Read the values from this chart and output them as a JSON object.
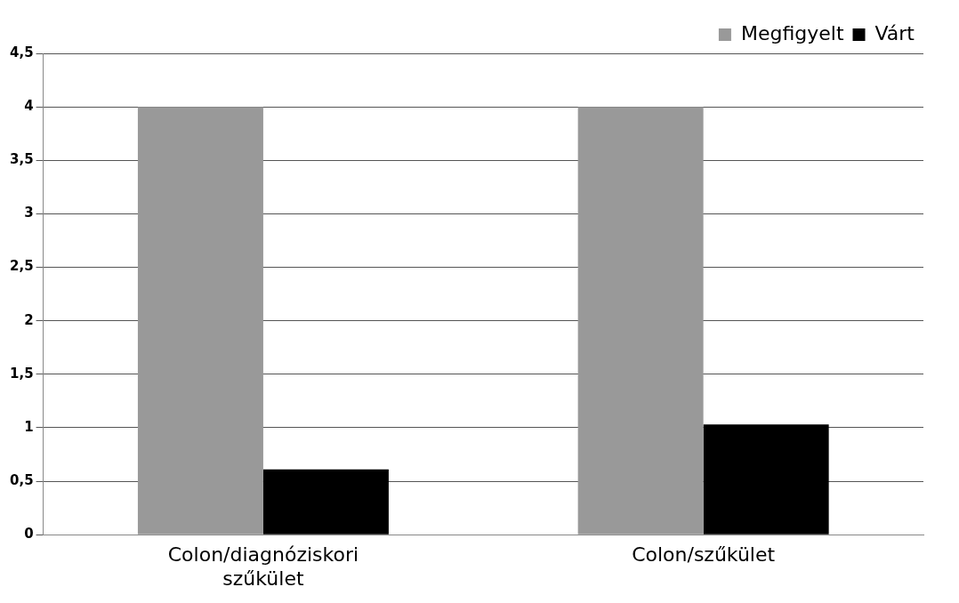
{
  "chart_data": {
    "type": "bar",
    "categories": [
      "Colon/diagnóziskori szűkület",
      "Colon/szűkület"
    ],
    "series": [
      {
        "name": "Megfigyelt",
        "color": "#999999",
        "values": [
          4,
          4
        ]
      },
      {
        "name": "Várt",
        "color": "#000000",
        "values": [
          0.61,
          1.03
        ]
      }
    ],
    "ylim": [
      0,
      4.5
    ],
    "yticks": [
      0,
      {
        "value": 0.5,
        "label": "0,5"
      },
      1,
      {
        "value": 1.5,
        "label": "1,5"
      },
      2,
      {
        "value": 2.5,
        "label": "2,5"
      },
      3,
      {
        "value": 3.5,
        "label": "3,5"
      },
      4,
      {
        "value": 4.5,
        "label": "4,5"
      }
    ],
    "grid": "y",
    "legend": "top right"
  }
}
